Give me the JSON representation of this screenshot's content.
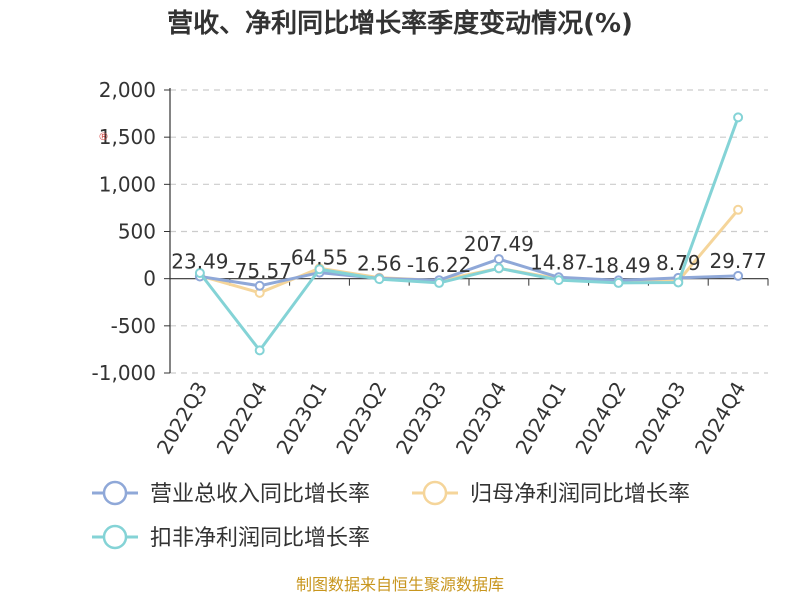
{
  "chart_data": {
    "type": "line",
    "title": "营收、净利同比增长率季度变动情况(%)",
    "categories": [
      "2022Q3",
      "2022Q4",
      "2023Q1",
      "2023Q2",
      "2023Q3",
      "2023Q4",
      "2024Q1",
      "2024Q2",
      "2024Q3",
      "2024Q4"
    ],
    "ylim": [
      -1000,
      2000
    ],
    "yticks": [
      -1000,
      -500,
      0,
      500,
      1000,
      1500,
      2000
    ],
    "ytick_labels": [
      "-1,000",
      "-500",
      "0",
      "500",
      "1,000",
      "1,500",
      "2,000"
    ],
    "grid": true,
    "legend_position": "bottom",
    "series": [
      {
        "name": "营业总收入同比增长率",
        "color": "#8fa8d8",
        "values": [
          23.49,
          -75.57,
          64.55,
          2.56,
          -16.22,
          207.49,
          14.87,
          -18.49,
          8.79,
          29.77
        ]
      },
      {
        "name": "归母净利润同比增长率",
        "color": "#f5d59a",
        "values": [
          30,
          -150,
          110,
          10,
          -20,
          110,
          0,
          -30,
          -25,
          730
        ]
      },
      {
        "name": "扣非净利润同比增长率",
        "color": "#84d3d6",
        "values": [
          60,
          -760,
          100,
          -5,
          -45,
          110,
          -15,
          -45,
          -40,
          1710
        ]
      }
    ],
    "data_labels": [
      "23.49",
      "-75.57",
      "64.55",
      "2.56",
      "-16.22",
      "207.49",
      "14.87",
      "-18.49",
      "8.79",
      "29.77"
    ]
  },
  "watermark": "®",
  "source": "制图数据来自恒生聚源数据库"
}
